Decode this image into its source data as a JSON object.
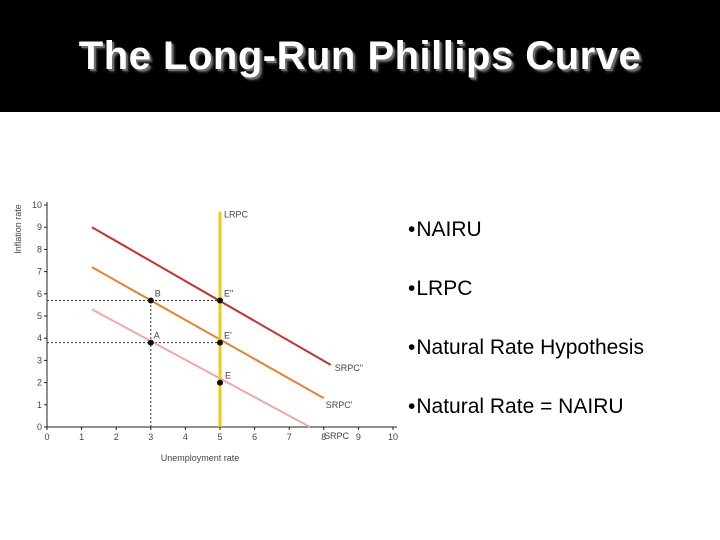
{
  "slide": {
    "title": "The Long-Run Phillips Curve",
    "bullets": [
      "NAIRU",
      "LRPC",
      "Natural Rate Hypothesis",
      "Natural Rate = NAIRU"
    ]
  },
  "chart_data": {
    "type": "line",
    "title": "",
    "xlabel": "Unemployment rate",
    "ylabel": "Inflation rate",
    "xlim": [
      0,
      10
    ],
    "ylim": [
      0,
      10
    ],
    "xticks": [
      0,
      1,
      2,
      3,
      4,
      5,
      6,
      7,
      8,
      9,
      10
    ],
    "yticks": [
      0,
      1,
      2,
      3,
      4,
      5,
      6,
      7,
      8,
      9,
      10
    ],
    "grid": false,
    "series": [
      {
        "name": "SRPC",
        "color": "#f0a9a4",
        "x": [
          1.3,
          7.6
        ],
        "y": [
          5.3,
          0
        ]
      },
      {
        "name": "SRPC'",
        "color": "#e8832a",
        "x": [
          1.3,
          8.0
        ],
        "y": [
          7.2,
          1.3
        ]
      },
      {
        "name": "SRPC\"",
        "color": "#c9302c",
        "x": [
          1.3,
          8.2
        ],
        "y": [
          9.0,
          2.8
        ]
      },
      {
        "name": "LRPC",
        "color": "#f2c81a",
        "x": [
          5,
          5
        ],
        "y": [
          0,
          9.7
        ]
      }
    ],
    "points": [
      {
        "label": "A",
        "x": 3,
        "y": 3.8
      },
      {
        "label": "B",
        "x": 3,
        "y": 5.7
      },
      {
        "label": "E",
        "x": 5,
        "y": 2
      },
      {
        "label": "E'",
        "x": 5,
        "y": 3.8
      },
      {
        "label": "E\"",
        "x": 5,
        "y": 5.7
      }
    ],
    "guides": [
      {
        "from": [
          0,
          3.8
        ],
        "to": [
          5,
          3.8
        ]
      },
      {
        "from": [
          0,
          5.7
        ],
        "to": [
          5,
          5.7
        ]
      },
      {
        "from": [
          3,
          0
        ],
        "to": [
          3,
          5.7
        ]
      }
    ]
  }
}
